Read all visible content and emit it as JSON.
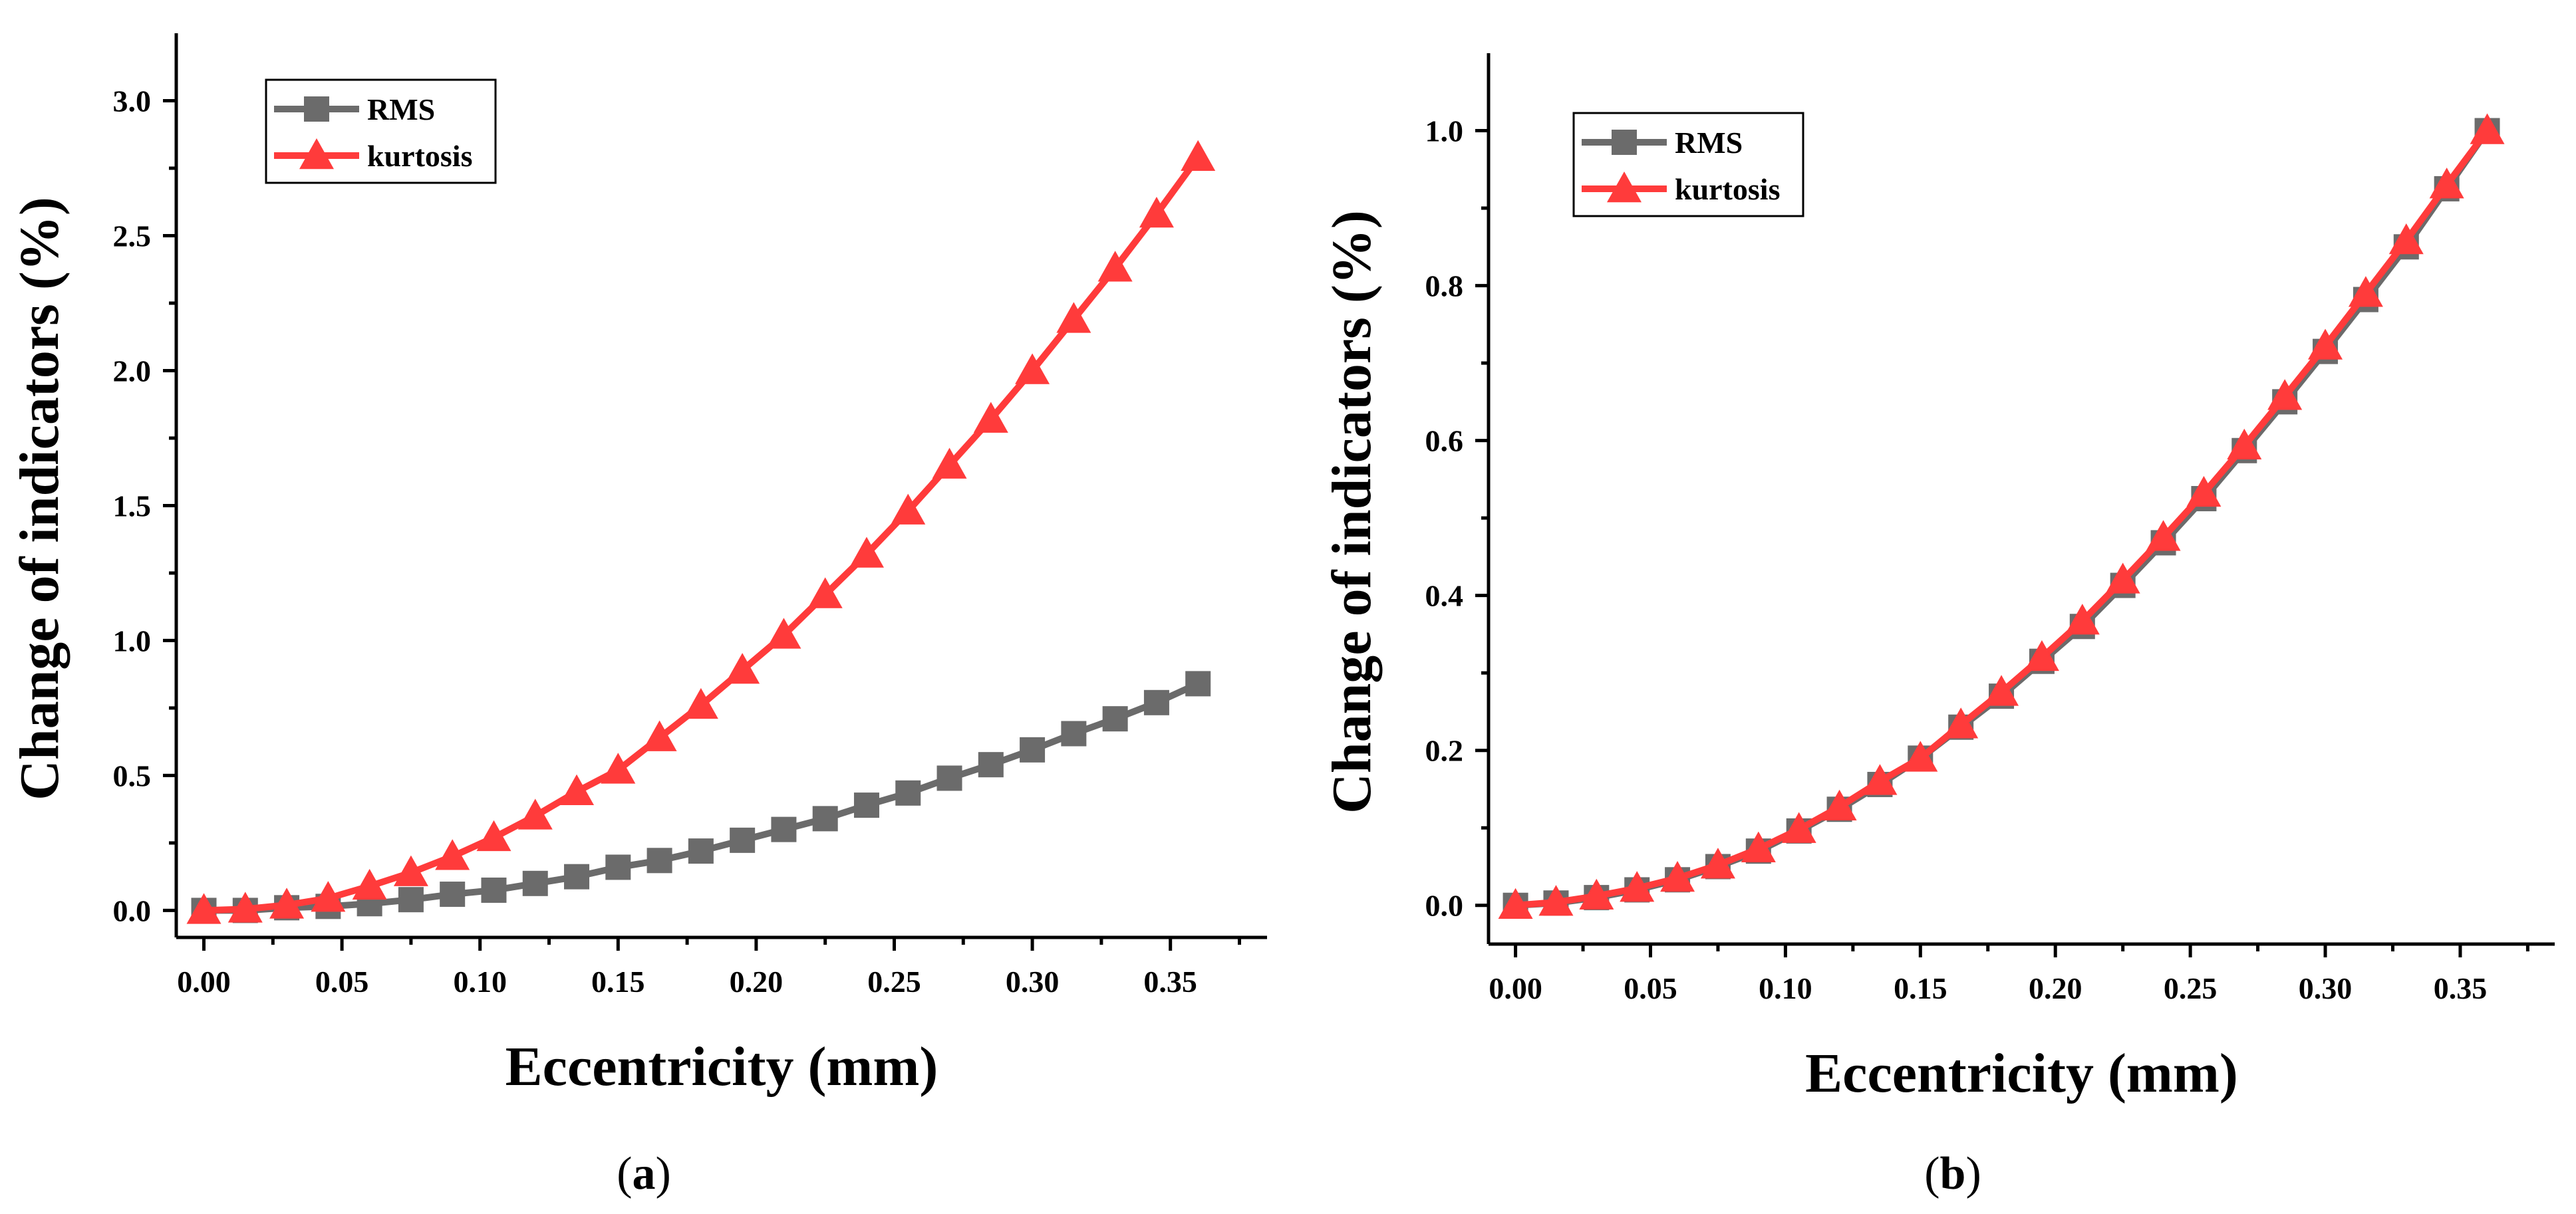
{
  "colors": {
    "rms": "#6b6b6b",
    "kurtosis": "#ff3b3b",
    "axis": "#000000"
  },
  "chart_data": [
    {
      "id": "a",
      "type": "line",
      "panel_label": "(a)",
      "panel_letter": "a",
      "xlabel": "Eccentricity (mm)",
      "ylabel": "Change of indicators (%)",
      "xlim": [
        -0.01,
        0.385
      ],
      "ylim": [
        -0.1,
        3.25
      ],
      "xticks": [
        0.0,
        0.05,
        0.1,
        0.15,
        0.2,
        0.25,
        0.3,
        0.35
      ],
      "xtick_labels": [
        "0.00",
        "0.05",
        "0.10",
        "0.15",
        "0.20",
        "0.25",
        "0.30",
        "0.35"
      ],
      "yticks": [
        0.0,
        0.5,
        1.0,
        1.5,
        2.0,
        2.5,
        3.0
      ],
      "ytick_labels": [
        "0.0",
        "0.5",
        "1.0",
        "1.5",
        "2.0",
        "2.5",
        "3.0"
      ],
      "legend_position": "top-left",
      "x": [
        0.0,
        0.015,
        0.03,
        0.045,
        0.06,
        0.075,
        0.09,
        0.105,
        0.12,
        0.135,
        0.15,
        0.165,
        0.18,
        0.195,
        0.21,
        0.225,
        0.24,
        0.255,
        0.27,
        0.285,
        0.3,
        0.315,
        0.33,
        0.345,
        0.36
      ],
      "series": [
        {
          "name": "RMS",
          "marker": "square",
          "color_key": "rms",
          "values": [
            0.0,
            0.0,
            0.01,
            0.015,
            0.025,
            0.04,
            0.06,
            0.075,
            0.1,
            0.125,
            0.16,
            0.185,
            0.22,
            0.26,
            0.3,
            0.34,
            0.39,
            0.435,
            0.49,
            0.54,
            0.595,
            0.655,
            0.71,
            0.77,
            0.84
          ]
        },
        {
          "name": "kurtosis",
          "marker": "triangle",
          "color_key": "kurtosis",
          "values": [
            0.0,
            0.005,
            0.02,
            0.045,
            0.09,
            0.14,
            0.2,
            0.27,
            0.35,
            0.44,
            0.52,
            0.64,
            0.76,
            0.89,
            1.02,
            1.17,
            1.32,
            1.48,
            1.65,
            1.82,
            2.0,
            2.19,
            2.38,
            2.58,
            2.79
          ]
        }
      ]
    },
    {
      "id": "b",
      "type": "line",
      "panel_label": "(b)",
      "panel_letter": "b",
      "xlabel": "Eccentricity (mm)",
      "ylabel": "Change of indicators (%)",
      "xlim": [
        -0.01,
        0.385
      ],
      "ylim": [
        -0.05,
        1.1
      ],
      "xticks": [
        0.0,
        0.05,
        0.1,
        0.15,
        0.2,
        0.25,
        0.3,
        0.35
      ],
      "xtick_labels": [
        "0.00",
        "0.05",
        "0.10",
        "0.15",
        "0.20",
        "0.25",
        "0.30",
        "0.35"
      ],
      "yticks": [
        0.0,
        0.2,
        0.4,
        0.6,
        0.8,
        1.0
      ],
      "ytick_labels": [
        "0.0",
        "0.2",
        "0.4",
        "0.6",
        "0.8",
        "1.0"
      ],
      "legend_position": "top-left",
      "x": [
        0.0,
        0.015,
        0.03,
        0.045,
        0.06,
        0.075,
        0.09,
        0.105,
        0.12,
        0.135,
        0.15,
        0.165,
        0.18,
        0.195,
        0.21,
        0.225,
        0.24,
        0.255,
        0.27,
        0.285,
        0.3,
        0.315,
        0.33,
        0.345,
        0.36
      ],
      "series": [
        {
          "name": "RMS",
          "marker": "square",
          "color_key": "rms",
          "values": [
            0.0,
            0.003,
            0.01,
            0.02,
            0.033,
            0.05,
            0.07,
            0.096,
            0.124,
            0.156,
            0.19,
            0.23,
            0.27,
            0.315,
            0.36,
            0.413,
            0.468,
            0.525,
            0.587,
            0.65,
            0.715,
            0.782,
            0.85,
            0.925,
            1.0
          ]
        },
        {
          "name": "kurtosis",
          "marker": "triangle",
          "color_key": "kurtosis",
          "values": [
            0.0,
            0.004,
            0.012,
            0.022,
            0.035,
            0.052,
            0.073,
            0.098,
            0.127,
            0.16,
            0.19,
            0.233,
            0.275,
            0.32,
            0.367,
            0.42,
            0.475,
            0.532,
            0.593,
            0.657,
            0.722,
            0.79,
            0.858,
            0.93,
            1.0
          ]
        }
      ]
    }
  ]
}
